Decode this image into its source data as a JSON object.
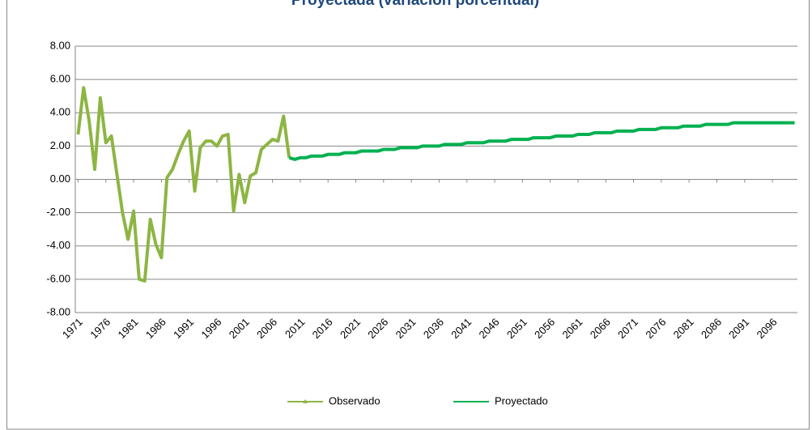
{
  "chart_data": {
    "type": "line",
    "title": "Proyectada (variación porcentual)",
    "xlim": [
      1970.5,
      2100.5
    ],
    "xticks": [
      1971,
      1976,
      1981,
      1986,
      1991,
      1996,
      2001,
      2006,
      2011,
      2016,
      2021,
      2026,
      2031,
      2036,
      2041,
      2046,
      2051,
      2056,
      2061,
      2066,
      2071,
      2076,
      2081,
      2086,
      2091,
      2096
    ],
    "ylim": [
      -8,
      8
    ],
    "yticks": [
      {
        "value": -8,
        "label": "-8.00"
      },
      {
        "value": -6,
        "label": "-6.00"
      },
      {
        "value": -4,
        "label": "-4.00"
      },
      {
        "value": -2,
        "label": "-2.00"
      },
      {
        "value": 0,
        "label": "0.00"
      },
      {
        "value": 2,
        "label": "2.00"
      },
      {
        "value": 4,
        "label": "4.00"
      },
      {
        "value": 6,
        "label": "6.00"
      },
      {
        "value": 8,
        "label": "8.00"
      }
    ],
    "grid": true,
    "legend": "bottom",
    "series": [
      {
        "name": "Observado",
        "color": "#8db543",
        "x": [
          1971,
          1972,
          1973,
          1974,
          1975,
          1976,
          1977,
          1978,
          1979,
          1980,
          1981,
          1982,
          1983,
          1984,
          1985,
          1986,
          1987,
          1988,
          1989,
          1990,
          1991,
          1992,
          1993,
          1994,
          1995,
          1996,
          1997,
          1998,
          1999,
          2000,
          2001,
          2002,
          2003,
          2004,
          2005,
          2006,
          2007,
          2008,
          2009
        ],
        "values": [
          2.7,
          5.5,
          3.5,
          0.6,
          4.9,
          2.2,
          2.6,
          0.3,
          -2.0,
          -3.6,
          -1.9,
          -6.0,
          -6.1,
          -2.4,
          -3.9,
          -4.7,
          0.1,
          0.6,
          1.5,
          2.3,
          2.9,
          -0.7,
          1.9,
          2.3,
          2.3,
          2.0,
          2.6,
          2.7,
          -1.9,
          0.3,
          -1.4,
          0.2,
          0.4,
          1.8,
          2.1,
          2.4,
          2.3,
          3.8,
          1.3
        ]
      },
      {
        "name": "Proyectado",
        "color": "#00b050",
        "x": [
          2009,
          2010,
          2011,
          2012,
          2013,
          2014,
          2015,
          2016,
          2017,
          2018,
          2019,
          2020,
          2021,
          2022,
          2023,
          2024,
          2025,
          2026,
          2027,
          2028,
          2029,
          2030,
          2031,
          2032,
          2033,
          2034,
          2035,
          2036,
          2037,
          2038,
          2039,
          2040,
          2041,
          2042,
          2043,
          2044,
          2045,
          2046,
          2047,
          2048,
          2049,
          2050,
          2051,
          2052,
          2053,
          2054,
          2055,
          2056,
          2057,
          2058,
          2059,
          2060,
          2061,
          2062,
          2063,
          2064,
          2065,
          2066,
          2067,
          2068,
          2069,
          2070,
          2071,
          2072,
          2073,
          2074,
          2075,
          2076,
          2077,
          2078,
          2079,
          2080,
          2081,
          2082,
          2083,
          2084,
          2085,
          2086,
          2087,
          2088,
          2089,
          2090,
          2091,
          2092,
          2093,
          2094,
          2095,
          2096,
          2097,
          2098,
          2099,
          2100
        ],
        "values": [
          1.3,
          1.2,
          1.3,
          1.3,
          1.4,
          1.4,
          1.4,
          1.5,
          1.5,
          1.5,
          1.6,
          1.6,
          1.6,
          1.7,
          1.7,
          1.7,
          1.7,
          1.8,
          1.8,
          1.8,
          1.9,
          1.9,
          1.9,
          1.9,
          2.0,
          2.0,
          2.0,
          2.0,
          2.1,
          2.1,
          2.1,
          2.1,
          2.2,
          2.2,
          2.2,
          2.2,
          2.3,
          2.3,
          2.3,
          2.3,
          2.4,
          2.4,
          2.4,
          2.4,
          2.5,
          2.5,
          2.5,
          2.5,
          2.6,
          2.6,
          2.6,
          2.6,
          2.7,
          2.7,
          2.7,
          2.8,
          2.8,
          2.8,
          2.8,
          2.9,
          2.9,
          2.9,
          2.9,
          3.0,
          3.0,
          3.0,
          3.0,
          3.1,
          3.1,
          3.1,
          3.1,
          3.2,
          3.2,
          3.2,
          3.2,
          3.3,
          3.3,
          3.3,
          3.3,
          3.3,
          3.4,
          3.4,
          3.4,
          3.4,
          3.4,
          3.4,
          3.4,
          3.4,
          3.4,
          3.4,
          3.4,
          3.4
        ]
      }
    ]
  }
}
